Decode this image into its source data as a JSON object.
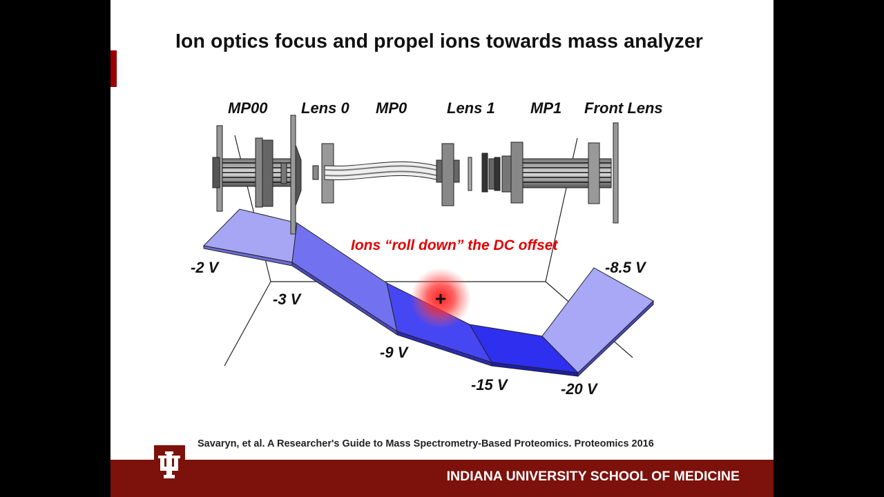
{
  "slide": {
    "title": "Ion optics focus and propel ions towards mass analyzer",
    "components": [
      {
        "key": "mp00",
        "label": "MP00"
      },
      {
        "key": "lens0",
        "label": "Lens 0"
      },
      {
        "key": "mp0",
        "label": "MP0"
      },
      {
        "key": "lens1",
        "label": "Lens 1"
      },
      {
        "key": "mp1",
        "label": "MP1"
      },
      {
        "key": "front_lens",
        "label": "Front Lens"
      }
    ],
    "voltages": [
      "-2 V",
      "-3 V",
      "-9 V",
      "-15 V",
      "-20 V",
      "-8.5 V"
    ],
    "annotation": "Ions “roll down” the DC offset",
    "ion_symbol": "+",
    "citation": "Savaryn, et al. A Researcher's Guide to Mass Spectrometry-Based Proteomics. Proteomics 2016",
    "footer": "INDIANA UNIVERSITY SCHOOL OF MEDICINE",
    "colors": {
      "crimson": "#7d110c",
      "accent": "#990000",
      "annotation": "#e00000",
      "surface_light": "#a6a6f5",
      "surface_dark": "#2f2ff0"
    }
  }
}
